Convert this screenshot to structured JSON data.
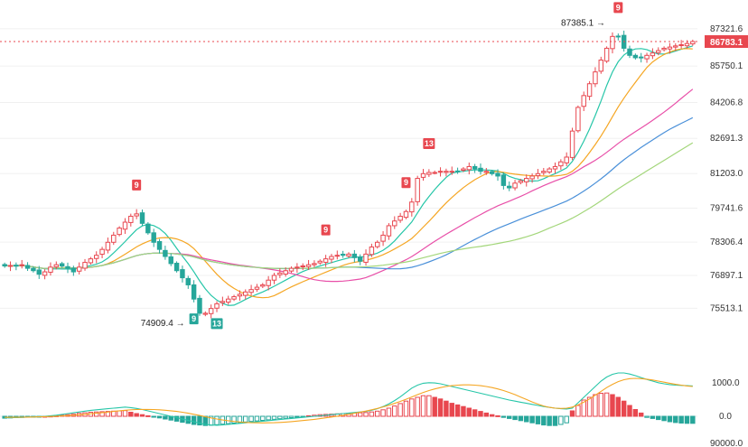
{
  "chart_data": {
    "type": "candlestick",
    "grid": true,
    "price_axis": {
      "ticks": [
        "87321.6",
        "85750.1",
        "84206.8",
        "82691.3",
        "81203.0",
        "79741.6",
        "78306.4",
        "76897.1",
        "75513.1"
      ],
      "range": [
        74800,
        87700
      ]
    },
    "last_price": {
      "label": "86783.1",
      "value": 86783.1,
      "color": "#e8474f"
    },
    "max_annotation": {
      "label": "87385.1",
      "value": 87385.1,
      "candle_index": 106
    },
    "min_annotation": {
      "label": "74909.4",
      "value": 74909.4,
      "candle_index": 33
    },
    "td_markers": [
      {
        "label": "9",
        "candle_index": 23,
        "position": "above",
        "color": "#e8474f"
      },
      {
        "label": "9",
        "candle_index": 56,
        "position": "above",
        "color": "#e8474f"
      },
      {
        "label": "9",
        "candle_index": 70,
        "position": "above",
        "color": "#e8474f"
      },
      {
        "label": "13",
        "candle_index": 74,
        "position": "above",
        "color": "#e8474f"
      },
      {
        "label": "9",
        "candle_index": 33,
        "position": "below",
        "color": "#26a69a"
      },
      {
        "label": "13",
        "candle_index": 37,
        "position": "below",
        "color": "#26a69a"
      },
      {
        "label": "9",
        "candle_index": 107,
        "position": "above",
        "color": "#e8474f"
      }
    ],
    "closes": [
      77300,
      77320,
      77290,
      77350,
      77200,
      77100,
      76950,
      77050,
      77250,
      77350,
      77300,
      77200,
      77050,
      77250,
      77450,
      77600,
      77750,
      78000,
      78300,
      78600,
      78900,
      79150,
      79400,
      79500,
      79100,
      78700,
      78300,
      78000,
      77700,
      77400,
      77100,
      76800,
      76500,
      75900,
      75300,
      75300,
      75500,
      75700,
      75800,
      75900,
      76000,
      76100,
      76200,
      76300,
      76400,
      76500,
      76700,
      76900,
      77000,
      77100,
      77200,
      77250,
      77300,
      77350,
      77400,
      77500,
      77600,
      77700,
      77750,
      77750,
      77800,
      77650,
      77500,
      77800,
      78100,
      78300,
      78600,
      79000,
      79200,
      79400,
      79600,
      80000,
      81000,
      81200,
      81250,
      81250,
      81300,
      81300,
      81300,
      81300,
      81400,
      81500,
      81400,
      81300,
      81300,
      81200,
      81100,
      80700,
      80600,
      80800,
      80900,
      81000,
      81100,
      81200,
      81300,
      81400,
      81500,
      81700,
      81900,
      83000,
      84000,
      84500,
      85000,
      85500,
      86000,
      86500,
      87000,
      87000,
      86500,
      86200,
      86100,
      86100,
      86200,
      86300,
      86400,
      86500,
      86550,
      86600,
      86650,
      86700,
      86783
    ],
    "moving_averages": [
      {
        "color": "#26c6a8"
      },
      {
        "color": "#f5a623"
      },
      {
        "color": "#e84fa8"
      },
      {
        "color": "#4a90d9"
      },
      {
        "color": "#a3d67a"
      }
    ],
    "macd": {
      "axis_ticks": [
        "1000.0",
        "0.0",
        "90000.0"
      ],
      "histogram": [
        -70,
        -60,
        -50,
        -40,
        -30,
        -20,
        -10,
        0,
        10,
        20,
        40,
        60,
        80,
        110,
        130,
        150,
        160,
        170,
        180,
        190,
        200,
        210,
        150,
        100,
        60,
        20,
        -20,
        -60,
        -100,
        -140,
        -180,
        -220,
        -260,
        -300,
        -320,
        -340,
        -330,
        -310,
        -290,
        -270,
        -250,
        -230,
        -210,
        -190,
        -170,
        -150,
        -130,
        -110,
        -90,
        -70,
        -50,
        -30,
        -10,
        20,
        40,
        60,
        70,
        80,
        90,
        100,
        110,
        120,
        130,
        140,
        160,
        190,
        240,
        300,
        380,
        470,
        560,
        640,
        700,
        760,
        760,
        700,
        640,
        560,
        480,
        420,
        360,
        300,
        240,
        180,
        120,
        60,
        20,
        -40,
        -80,
        -120,
        -160,
        -200,
        -240,
        -280,
        -320,
        -340,
        -340,
        -300,
        -240,
        200,
        400,
        600,
        700,
        800,
        850,
        860,
        800,
        700,
        560,
        400,
        250,
        120,
        -40,
        -80,
        -120,
        -160,
        -200,
        -230,
        -250,
        -260,
        -260
      ],
      "dif": [
        -60,
        -50,
        -45,
        -40,
        -30,
        -20,
        -10,
        0,
        20,
        40,
        70,
        100,
        130,
        160,
        190,
        220,
        240,
        260,
        280,
        300,
        320,
        340,
        320,
        290,
        250,
        200,
        150,
        100,
        50,
        0,
        -50,
        -100,
        -150,
        -200,
        -250,
        -300,
        -320,
        -330,
        -320,
        -300,
        -280,
        -260,
        -240,
        -220,
        -200,
        -180,
        -160,
        -140,
        -120,
        -100,
        -80,
        -60,
        -40,
        -20,
        0,
        20,
        40,
        60,
        80,
        100,
        120,
        140,
        160,
        180,
        220,
        280,
        360,
        460,
        580,
        720,
        880,
        1040,
        1150,
        1220,
        1240,
        1230,
        1200,
        1150,
        1100,
        1050,
        1000,
        950,
        900,
        850,
        800,
        750,
        700,
        650,
        600,
        560,
        520,
        480,
        440,
        400,
        360,
        330,
        300,
        280,
        270,
        300,
        500,
        700,
        900,
        1100,
        1300,
        1450,
        1550,
        1600,
        1600,
        1560,
        1500,
        1430,
        1360,
        1300,
        1240,
        1200,
        1170,
        1150,
        1140,
        1130,
        1120
      ],
      "dea": [
        -40,
        -38,
        -36,
        -34,
        -30,
        -26,
        -20,
        -14,
        -6,
        2,
        12,
        24,
        38,
        54,
        72,
        92,
        114,
        136,
        158,
        180,
        202,
        224,
        240,
        250,
        255,
        255,
        250,
        240,
        225,
        205,
        180,
        150,
        115,
        75,
        30,
        -15,
        -60,
        -100,
        -135,
        -165,
        -190,
        -210,
        -225,
        -235,
        -240,
        -242,
        -240,
        -235,
        -225,
        -212,
        -196,
        -178,
        -158,
        -136,
        -112,
        -86,
        -58,
        -28,
        4,
        38,
        74,
        112,
        152,
        194,
        240,
        290,
        346,
        408,
        476,
        550,
        630,
        714,
        800,
        880,
        950,
        1010,
        1060,
        1100,
        1130,
        1150,
        1160,
        1160,
        1150,
        1130,
        1100,
        1060,
        1010,
        950,
        880,
        800,
        710,
        620,
        530,
        450,
        380,
        330,
        300,
        290,
        300,
        340,
        420,
        520,
        640,
        780,
        920,
        1060,
        1180,
        1280,
        1350,
        1390,
        1400,
        1390,
        1370,
        1340,
        1300,
        1260,
        1220,
        1180,
        1150,
        1120,
        1100
      ]
    }
  }
}
